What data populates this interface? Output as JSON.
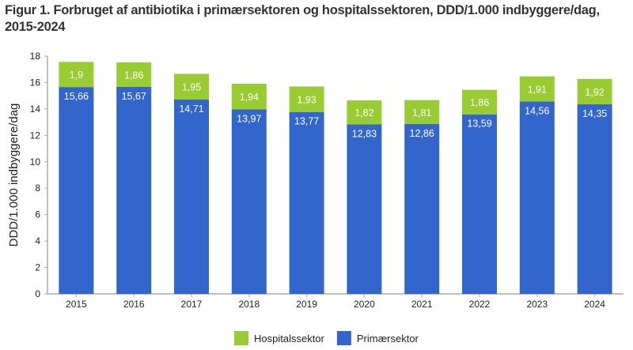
{
  "chart_data": {
    "type": "bar",
    "stacked": true,
    "title": "Figur 1. Forbruget af antibiotika i primærsektoren og hospitalssektoren, DDD/1.000 indbyggere/dag, 2015-2024",
    "xlabel": "",
    "ylabel": "DDD/1.000 indbyggere/dag",
    "ylim": [
      0,
      18
    ],
    "yticks": [
      0,
      2,
      4,
      6,
      8,
      10,
      12,
      14,
      16,
      18
    ],
    "grid": false,
    "legend_position": "bottom",
    "categories": [
      "2015",
      "2016",
      "2017",
      "2018",
      "2019",
      "2020",
      "2021",
      "2022",
      "2023",
      "2024"
    ],
    "series": [
      {
        "name": "Primærsektor",
        "color": "#3366CC",
        "values": [
          15.66,
          15.67,
          14.71,
          13.97,
          13.77,
          12.83,
          12.86,
          13.59,
          14.56,
          14.35
        ],
        "labels": [
          "15,66",
          "15,67",
          "14,71",
          "13,97",
          "13,77",
          "12,83",
          "12,86",
          "13,59",
          "14,56",
          "14,35"
        ]
      },
      {
        "name": "Hospitalssektor",
        "color": "#99CC33",
        "values": [
          1.9,
          1.86,
          1.95,
          1.94,
          1.93,
          1.82,
          1.81,
          1.86,
          1.91,
          1.92
        ],
        "labels": [
          "1,9",
          "1,86",
          "1,95",
          "1,94",
          "1,93",
          "1,82",
          "1,81",
          "1,86",
          "1,91",
          "1,92"
        ]
      }
    ],
    "legend_order": [
      "Hospitalssektor",
      "Primærsektor"
    ]
  }
}
